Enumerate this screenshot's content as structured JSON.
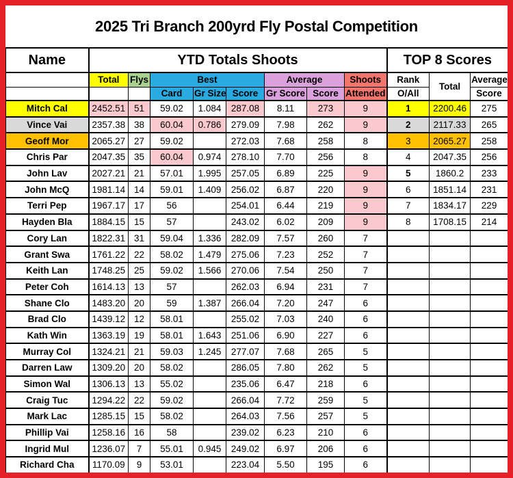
{
  "title": "2025 Tri Branch 200yrd Fly Postal Competition",
  "colors": {
    "frame_red": "#E62129",
    "total_yellow": "#FFFF00",
    "flys_green": "#A9D08E",
    "best_cyan": "#29ABE2",
    "average_plum": "#DBA1DC",
    "shoots_salmon": "#F4756C",
    "highlight_pink": "#F9C9CD",
    "rank2_gray": "#D9D9D9",
    "rank3_orange": "#FFC000"
  },
  "header": {
    "name": "Name",
    "ytd": "YTD Totals Shoots",
    "top8": "TOP 8 Scores"
  },
  "subheader": {
    "total": "Total",
    "flys": "Flys",
    "best": "Best",
    "card": "Card",
    "gr_size": "Gr Size",
    "score": "Score",
    "average": "Average",
    "gr_score": "Gr Score",
    "avg_score": "Score",
    "shoots": "Shoots",
    "attended": "Attended",
    "rank": "Rank",
    "o_all": "O/All",
    "top_total": "Total",
    "top_average": "Average",
    "top_score": "Score"
  },
  "rows": [
    {
      "name": "Mitch Cal",
      "tone": "yellow",
      "total": "2452.51",
      "flys": "51",
      "card": "59.02",
      "gr_size": "1.084",
      "score": "287.08",
      "gr_score": "8.11",
      "avg_score": "273",
      "attended": "9",
      "rank": "1",
      "rank_bold": true,
      "top_total": "2200.46",
      "top_avg": "275",
      "hl": [
        "total",
        "flys",
        "score",
        "avg_score",
        "attended"
      ]
    },
    {
      "name": "Vince Vai",
      "tone": "gray",
      "total": "2357.38",
      "flys": "38",
      "card": "60.04",
      "gr_size": "0.786",
      "score": "279.09",
      "gr_score": "7.98",
      "avg_score": "262",
      "attended": "9",
      "rank": "2",
      "rank_bold": true,
      "top_total": "2117.33",
      "top_avg": "265",
      "hl": [
        "card",
        "gr_size",
        "attended"
      ]
    },
    {
      "name": "Geoff Mor",
      "tone": "orange",
      "total": "2065.27",
      "flys": "27",
      "card": "59.02",
      "gr_size": "",
      "score": "272.03",
      "gr_score": "7.68",
      "avg_score": "258",
      "attended": "8",
      "rank": "3",
      "rank_bold": false,
      "top_total": "2065.27",
      "top_avg": "258",
      "hl": []
    },
    {
      "name": "Chris Par",
      "tone": null,
      "total": "2047.35",
      "flys": "35",
      "card": "60.04",
      "gr_size": "0.974",
      "score": "278.10",
      "gr_score": "7.70",
      "avg_score": "256",
      "attended": "8",
      "rank": "4",
      "rank_bold": false,
      "top_total": "2047.35",
      "top_avg": "256",
      "hl": [
        "card"
      ]
    },
    {
      "name": "John Lav",
      "tone": null,
      "total": "2027.21",
      "flys": "21",
      "card": "57.01",
      "gr_size": "1.995",
      "score": "257.05",
      "gr_score": "6.89",
      "avg_score": "225",
      "attended": "9",
      "rank": "5",
      "rank_bold": true,
      "top_total": "1860.2",
      "top_avg": "233",
      "hl": [
        "attended"
      ]
    },
    {
      "name": "John McQ",
      "tone": null,
      "total": "1981.14",
      "flys": "14",
      "card": "59.01",
      "gr_size": "1.409",
      "score": "256.02",
      "gr_score": "6.87",
      "avg_score": "220",
      "attended": "9",
      "rank": "6",
      "rank_bold": false,
      "top_total": "1851.14",
      "top_avg": "231",
      "hl": [
        "attended"
      ]
    },
    {
      "name": "Terri Pep",
      "tone": null,
      "total": "1967.17",
      "flys": "17",
      "card": "56",
      "gr_size": "",
      "score": "254.01",
      "gr_score": "6.44",
      "avg_score": "219",
      "attended": "9",
      "rank": "7",
      "rank_bold": false,
      "top_total": "1834.17",
      "top_avg": "229",
      "hl": [
        "attended"
      ]
    },
    {
      "name": "Hayden Bla",
      "tone": null,
      "total": "1884.15",
      "flys": "15",
      "card": "57",
      "gr_size": "",
      "score": "243.02",
      "gr_score": "6.02",
      "avg_score": "209",
      "attended": "9",
      "rank": "8",
      "rank_bold": false,
      "top_total": "1708.15",
      "top_avg": "214",
      "hl": [
        "attended"
      ]
    },
    {
      "name": "Cory Lan",
      "tone": null,
      "total": "1822.31",
      "flys": "31",
      "card": "59.04",
      "gr_size": "1.336",
      "score": "282.09",
      "gr_score": "7.57",
      "avg_score": "260",
      "attended": "7",
      "rank": "",
      "rank_bold": false,
      "top_total": "",
      "top_avg": "",
      "hl": []
    },
    {
      "name": "Grant Swa",
      "tone": null,
      "total": "1761.22",
      "flys": "22",
      "card": "58.02",
      "gr_size": "1.479",
      "score": "275.06",
      "gr_score": "7.23",
      "avg_score": "252",
      "attended": "7",
      "rank": "",
      "rank_bold": false,
      "top_total": "",
      "top_avg": "",
      "hl": []
    },
    {
      "name": "Keith Lan",
      "tone": null,
      "total": "1748.25",
      "flys": "25",
      "card": "59.02",
      "gr_size": "1.566",
      "score": "270.06",
      "gr_score": "7.54",
      "avg_score": "250",
      "attended": "7",
      "rank": "",
      "rank_bold": false,
      "top_total": "",
      "top_avg": "",
      "hl": []
    },
    {
      "name": "Peter Coh",
      "tone": null,
      "total": "1614.13",
      "flys": "13",
      "card": "57",
      "gr_size": "",
      "score": "262.03",
      "gr_score": "6.94",
      "avg_score": "231",
      "attended": "7",
      "rank": "",
      "rank_bold": false,
      "top_total": "",
      "top_avg": "",
      "hl": []
    },
    {
      "name": "Shane Clo",
      "tone": null,
      "total": "1483.20",
      "flys": "20",
      "card": "59",
      "gr_size": "1.387",
      "score": "266.04",
      "gr_score": "7.20",
      "avg_score": "247",
      "attended": "6",
      "rank": "",
      "rank_bold": false,
      "top_total": "",
      "top_avg": "",
      "hl": []
    },
    {
      "name": "Brad Clo",
      "tone": null,
      "total": "1439.12",
      "flys": "12",
      "card": "58.01",
      "gr_size": "",
      "score": "255.02",
      "gr_score": "7.03",
      "avg_score": "240",
      "attended": "6",
      "rank": "",
      "rank_bold": false,
      "top_total": "",
      "top_avg": "",
      "hl": []
    },
    {
      "name": "Kath Win",
      "tone": null,
      "total": "1363.19",
      "flys": "19",
      "card": "58.01",
      "gr_size": "1.643",
      "score": "251.06",
      "gr_score": "6.90",
      "avg_score": "227",
      "attended": "6",
      "rank": "",
      "rank_bold": false,
      "top_total": "",
      "top_avg": "",
      "hl": []
    },
    {
      "name": "Murray Col",
      "tone": null,
      "total": "1324.21",
      "flys": "21",
      "card": "59.03",
      "gr_size": "1.245",
      "score": "277.07",
      "gr_score": "7.68",
      "avg_score": "265",
      "attended": "5",
      "rank": "",
      "rank_bold": false,
      "top_total": "",
      "top_avg": "",
      "hl": []
    },
    {
      "name": "Darren Law",
      "tone": null,
      "total": "1309.20",
      "flys": "20",
      "card": "58.02",
      "gr_size": "",
      "score": "286.05",
      "gr_score": "7.80",
      "avg_score": "262",
      "attended": "5",
      "rank": "",
      "rank_bold": false,
      "top_total": "",
      "top_avg": "",
      "hl": []
    },
    {
      "name": "Simon Wal",
      "tone": null,
      "total": "1306.13",
      "flys": "13",
      "card": "55.02",
      "gr_size": "",
      "score": "235.06",
      "gr_score": "6.47",
      "avg_score": "218",
      "attended": "6",
      "rank": "",
      "rank_bold": false,
      "top_total": "",
      "top_avg": "",
      "hl": []
    },
    {
      "name": "Craig Tuc",
      "tone": null,
      "total": "1294.22",
      "flys": "22",
      "card": "59.02",
      "gr_size": "",
      "score": "266.04",
      "gr_score": "7.72",
      "avg_score": "259",
      "attended": "5",
      "rank": "",
      "rank_bold": false,
      "top_total": "",
      "top_avg": "",
      "hl": []
    },
    {
      "name": "Mark Lac",
      "tone": null,
      "total": "1285.15",
      "flys": "15",
      "card": "58.02",
      "gr_size": "",
      "score": "264.03",
      "gr_score": "7.56",
      "avg_score": "257",
      "attended": "5",
      "rank": "",
      "rank_bold": false,
      "top_total": "",
      "top_avg": "",
      "hl": []
    },
    {
      "name": "Phillip Vai",
      "tone": null,
      "total": "1258.16",
      "flys": "16",
      "card": "58",
      "gr_size": "",
      "score": "239.02",
      "gr_score": "6.23",
      "avg_score": "210",
      "attended": "6",
      "rank": "",
      "rank_bold": false,
      "top_total": "",
      "top_avg": "",
      "hl": []
    },
    {
      "name": "Ingrid Mul",
      "tone": null,
      "total": "1236.07",
      "flys": "7",
      "card": "55.01",
      "gr_size": "0.945",
      "score": "249.02",
      "gr_score": "6.97",
      "avg_score": "206",
      "attended": "6",
      "rank": "",
      "rank_bold": false,
      "top_total": "",
      "top_avg": "",
      "hl": []
    },
    {
      "name": "Richard Cha",
      "tone": null,
      "total": "1170.09",
      "flys": "9",
      "card": "53.01",
      "gr_size": "",
      "score": "223.04",
      "gr_score": "5.50",
      "avg_score": "195",
      "attended": "6",
      "rank": "",
      "rank_bold": false,
      "top_total": "",
      "top_avg": "",
      "hl": []
    }
  ]
}
